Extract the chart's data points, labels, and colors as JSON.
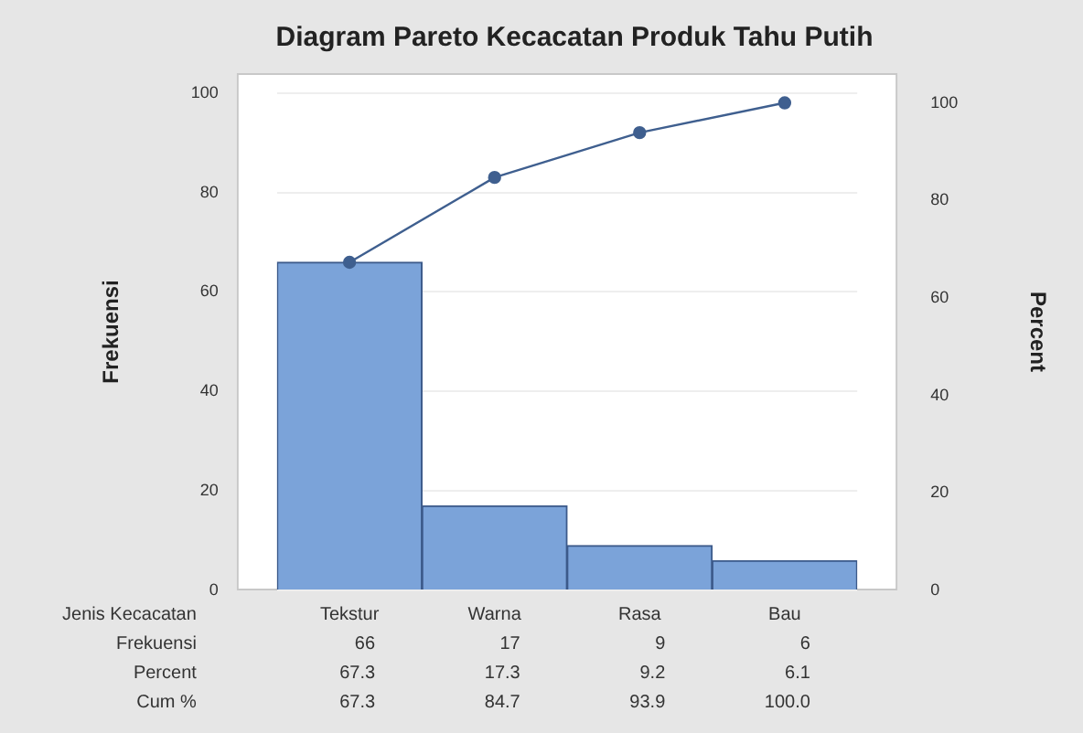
{
  "chart_data": {
    "type": "bar",
    "title": "Diagram Pareto Kecacatan Produk Tahu Putih",
    "xlabel": "Jenis Kecacatan",
    "ylabel": "Frekuensi",
    "y2label": "Percent",
    "categories": [
      "Tekstur",
      "Warna",
      "Rasa",
      "Bau"
    ],
    "series": [
      {
        "color": "#7ba3d9",
        "values": [
          66,
          17,
          9,
          6
        ],
        "value_labels": [
          "66",
          "17",
          "9",
          "6"
        ]
      },
      {
        "type": "line",
        "axis": "y2",
        "color": "#3f5f8f",
        "values": [
          67.3,
          84.7,
          93.9,
          100.0
        ],
        "value_labels": [
          "67.3",
          "84.7",
          "93.9",
          "100.0"
        ]
      }
    ],
    "annotations": [
      "Frekuensi",
      "Percent",
      "Cum %",
      "67.3",
      "17.3",
      "9.2",
      "6.1"
    ],
    "ylim": [
      0,
      104
    ],
    "yticks": [
      0,
      20,
      40,
      60,
      80,
      100
    ],
    "y2lim": [
      0,
      106.1
    ],
    "y2ticks": [
      0,
      20,
      40,
      60,
      80,
      100
    ],
    "grid": "y",
    "marker": "circle",
    "line_style": "solid",
    "legend": false
  }
}
